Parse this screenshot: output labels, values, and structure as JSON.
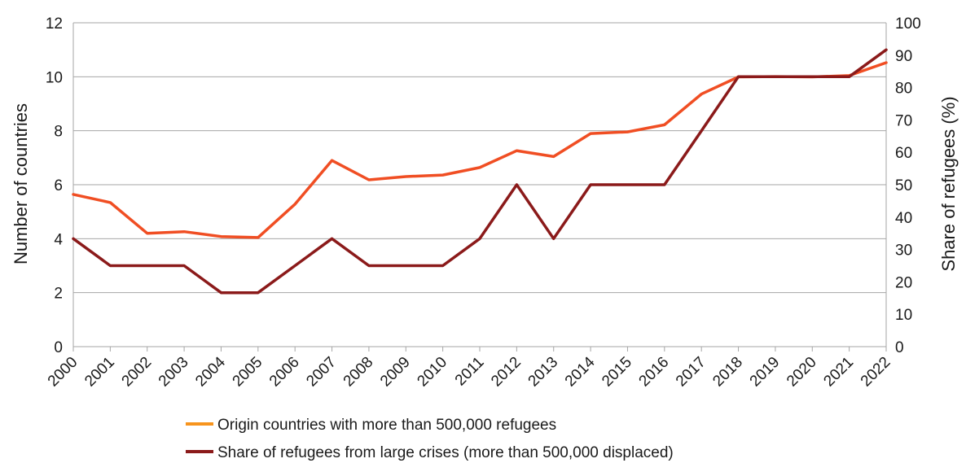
{
  "chart_data": {
    "type": "line",
    "x": [
      "2000",
      "2001",
      "2002",
      "2003",
      "2004",
      "2005",
      "2006",
      "2007",
      "2008",
      "2009",
      "2010",
      "2011",
      "2012",
      "2013",
      "2014",
      "2015",
      "2016",
      "2017",
      "2018",
      "2019",
      "2020",
      "2021",
      "2022"
    ],
    "y_left": {
      "label": "Number of countries",
      "ticks": [
        0,
        2,
        4,
        6,
        8,
        10,
        12
      ],
      "range": [
        0,
        12
      ]
    },
    "y_right": {
      "label": "Share of refugees (%)",
      "ticks": [
        0,
        10,
        20,
        30,
        40,
        50,
        60,
        70,
        80,
        90,
        100
      ],
      "range": [
        0,
        100
      ]
    },
    "grid": "horizontal",
    "legend_position": "bottom",
    "series": [
      {
        "name": "Origin countries with more than 500,000 refugees",
        "axis": "right",
        "color": "#f04e23",
        "legend_color": "#f7941d",
        "values": [
          47,
          44.5,
          35,
          35.5,
          34,
          33.7,
          44,
          57.5,
          51.5,
          52.5,
          53,
          55.3,
          60.5,
          58.7,
          65.8,
          66.3,
          68.5,
          78,
          83.3,
          83.4,
          83.3,
          83.7,
          87.7
        ]
      },
      {
        "name": "Share of refugees from large crises (more than 500,000 displaced)",
        "axis": "left",
        "color": "#8b1a1a",
        "legend_color": "#8b1a1a",
        "values": [
          4,
          3,
          3,
          3,
          2,
          2,
          3,
          4,
          3,
          3,
          3,
          4,
          6,
          4,
          6,
          6,
          6,
          8,
          10,
          10,
          10,
          10,
          11
        ]
      }
    ]
  }
}
